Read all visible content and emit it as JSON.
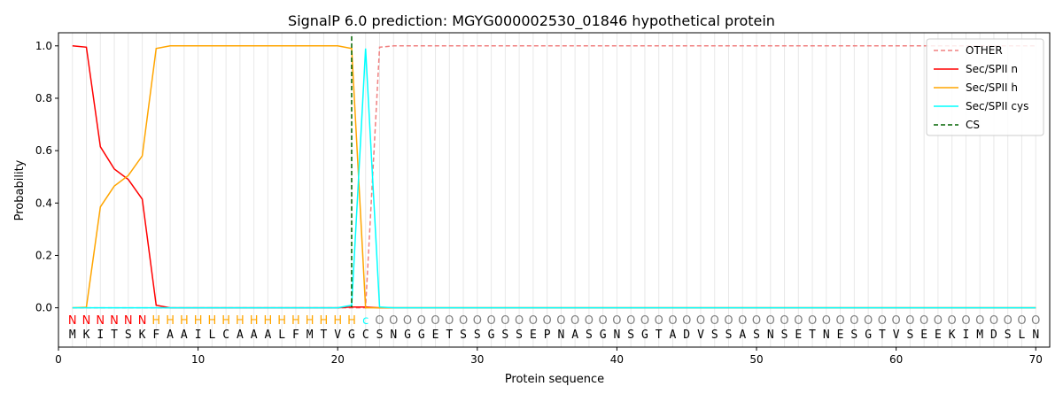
{
  "chart_data": {
    "type": "line",
    "title": "SignalP 6.0 prediction: MGYG000002530_01846 hypothetical protein",
    "xlabel": "Protein sequence",
    "ylabel": "Probability",
    "xlim": [
      0,
      71
    ],
    "ylim": [
      -0.15,
      1.05
    ],
    "xticks": [
      0,
      10,
      20,
      30,
      40,
      50,
      60,
      70
    ],
    "yticks": [
      0.0,
      0.2,
      0.4,
      0.6,
      0.8,
      1.0
    ],
    "legend_position": "top-right",
    "sequence": "MKITSKFAAILCAAALFMTVGCSNGGETSSGSSEPNASGNSGTADVSSASNSETNESGTVSEEKIMDSLN",
    "labels": "NNNNNNHHHHHHHHHHHHHHHcOOOOOOOOOOOOOOOOOOOOOOOOOOOOOOOOOOOOOOOOOOOOOOOO",
    "label_colors": {
      "N": "#ff0000",
      "H": "#ffa500",
      "c": "#00ffff",
      "O": "#808080"
    },
    "cs_position": 21,
    "series": [
      {
        "name": "OTHER",
        "color": "#f08080",
        "dash": true,
        "values": {
          "start": 1,
          "head": [
            0,
            0,
            0,
            0,
            0,
            0,
            0,
            0,
            0,
            0,
            0,
            0,
            0,
            0,
            0,
            0,
            0,
            0,
            0,
            0,
            0,
            0,
            0.995
          ],
          "rest": 1.0
        }
      },
      {
        "name": "Sec/SPII n",
        "color": "#ff0000",
        "dash": false,
        "values": {
          "start": 1,
          "head": [
            1.0,
            0.995,
            0.615,
            0.53,
            0.49,
            0.415,
            0.01,
            0.0,
            0,
            0,
            0,
            0,
            0,
            0,
            0,
            0,
            0,
            0,
            0,
            0,
            0.003,
            0.003,
            0.0
          ],
          "rest": 0
        }
      },
      {
        "name": "Sec/SPII h",
        "color": "#ffa500",
        "dash": false,
        "values": {
          "start": 1,
          "head": [
            0,
            0.002,
            0.385,
            0.465,
            0.505,
            0.58,
            0.99,
            1.0,
            1,
            1,
            1,
            1,
            1,
            1,
            1,
            1,
            1,
            1,
            1,
            1,
            0.99,
            0.0,
            0.0
          ],
          "rest": 0
        }
      },
      {
        "name": "Sec/SPII cys",
        "color": "#00ffff",
        "dash": false,
        "values": {
          "start": 1,
          "head": [
            0,
            0,
            0,
            0,
            0,
            0,
            0,
            0,
            0,
            0,
            0,
            0,
            0,
            0,
            0,
            0,
            0,
            0,
            0,
            0,
            0.01,
            0.99,
            0.003
          ],
          "rest": 0
        }
      },
      {
        "name": "CS",
        "color": "#006400",
        "dash": true,
        "values": null
      }
    ]
  }
}
